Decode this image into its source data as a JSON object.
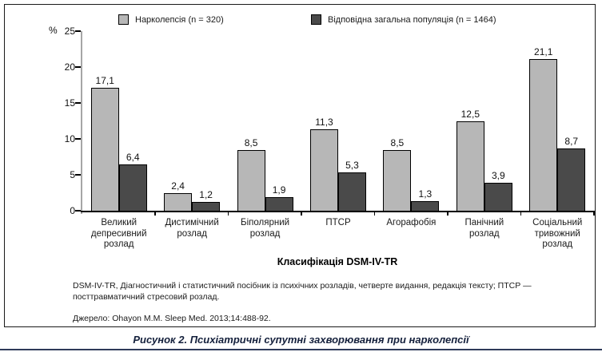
{
  "chart_data": {
    "type": "bar",
    "categories": [
      "Великий депресивний розлад",
      "Дистимічний розлад",
      "Біполярний розлад",
      "ПТСР",
      "Агорафобія",
      "Панічний розлад",
      "Соціальний тривожний розлад"
    ],
    "series": [
      {
        "name": "Нарколепсія (n = 320)",
        "values": [
          17.1,
          2.4,
          8.5,
          11.3,
          8.5,
          12.5,
          21.1
        ],
        "color": "#b7b7b7"
      },
      {
        "name": "Відповідна загальна популяція (n = 1464)",
        "values": [
          6.4,
          1.2,
          1.9,
          5.3,
          1.3,
          3.9,
          8.7
        ],
        "color": "#4a4a4a"
      }
    ],
    "ylabel": "%",
    "yticks": [
      0,
      5,
      10,
      15,
      20,
      25
    ],
    "ylim": [
      0,
      25
    ],
    "xlabel": "Класифікація DSM-IV-TR",
    "legend_position": "top",
    "grid": false,
    "value_label_decimal": "comma"
  },
  "footnotes": {
    "definitions": "DSM-IV-TR, Діагностичний і статистичний посібник із психічних розладів, четверте видання, редакція тексту; ПТСР — посттравматичний стресовий розлад.",
    "source": "Джерело: Ohayon M.M. Sleep Med. 2013;14:488-92."
  },
  "caption": "Рисунок 2. Психіатричні супутні захворювання при нарколепсії"
}
